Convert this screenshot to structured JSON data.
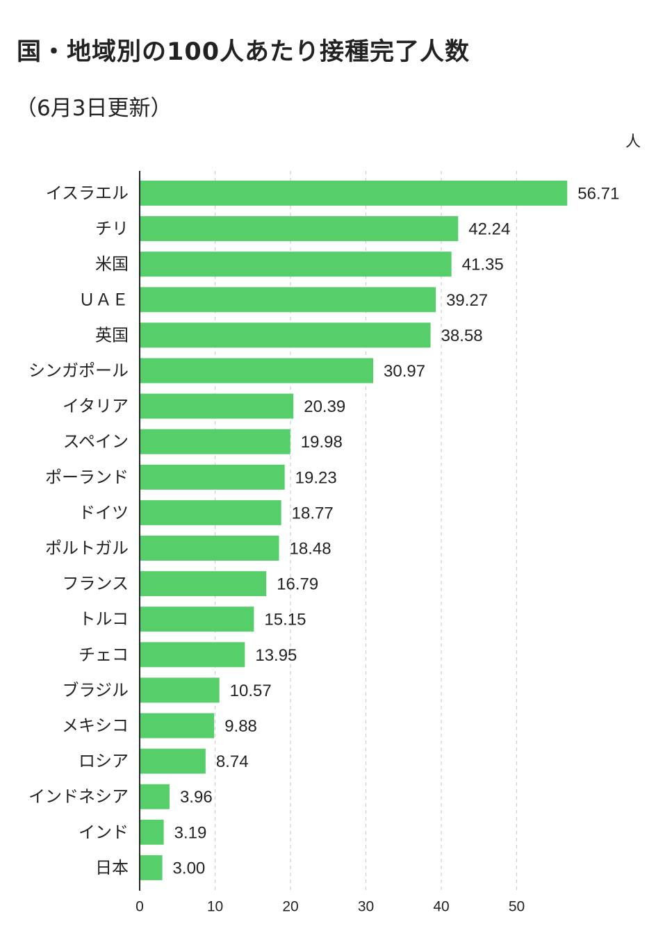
{
  "chart_data": {
    "type": "bar",
    "orientation": "horizontal",
    "title": "国・地域別の100人あたり接種完了人数",
    "subtitle": "（6月3日更新）",
    "unit": "人",
    "categories": [
      "イスラエル",
      "チリ",
      "米国",
      "ＵＡＥ",
      "英国",
      "シンガポール",
      "イタリア",
      "スペイン",
      "ポーランド",
      "ドイツ",
      "ポルトガル",
      "フランス",
      "トルコ",
      "チェコ",
      "ブラジル",
      "メキシコ",
      "ロシア",
      "インドネシア",
      "インド",
      "日本"
    ],
    "values": [
      56.71,
      42.24,
      41.35,
      39.27,
      38.58,
      30.97,
      20.39,
      19.98,
      19.23,
      18.77,
      18.48,
      16.79,
      15.15,
      13.95,
      10.57,
      9.88,
      8.74,
      3.96,
      3.19,
      3.0
    ],
    "value_labels": [
      "56.71",
      "42.24",
      "41.35",
      "39.27",
      "38.58",
      "30.97",
      "20.39",
      "19.98",
      "19.23",
      "18.77",
      "18.48",
      "16.79",
      "15.15",
      "13.95",
      "10.57",
      "9.88",
      "8.74",
      "3.96",
      "3.19",
      "3.00"
    ],
    "x_ticks": [
      0,
      10,
      20,
      30,
      40,
      50
    ],
    "xlim": [
      0,
      60
    ],
    "grid": "vertical-dashed",
    "bar_color": "#56cf6a",
    "grid_color": "#cfcfcf",
    "axis_color": "#222222"
  }
}
